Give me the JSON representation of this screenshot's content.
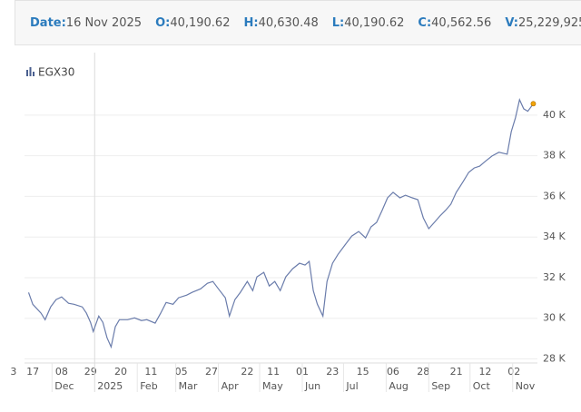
{
  "header": {
    "items": [
      {
        "label": "Date:",
        "value": "16 Nov 2025"
      },
      {
        "label": "O:",
        "value": "40,190.62"
      },
      {
        "label": "H:",
        "value": "40,630.48"
      },
      {
        "label": "L:",
        "value": "40,190.62"
      },
      {
        "label": "C:",
        "value": "40,562.56"
      },
      {
        "label": "V:",
        "value": "25,229,925"
      }
    ]
  },
  "chart_data": {
    "type": "line",
    "title": "EGX30",
    "color": "#6a7cab",
    "last_point_color": "#f0a30a",
    "grid": true,
    "xlim": [
      "2024-11-11",
      "2025-11-19"
    ],
    "ylim": [
      27800,
      41200
    ],
    "yticks": [
      {
        "value": 28000,
        "label": "28 K"
      },
      {
        "value": 30000,
        "label": "30 K"
      },
      {
        "value": 32000,
        "label": "32 K"
      },
      {
        "value": 34000,
        "label": "34 K"
      },
      {
        "value": 36000,
        "label": "36 K"
      },
      {
        "value": 38000,
        "label": "38 K"
      },
      {
        "value": 40000,
        "label": "40 K"
      }
    ],
    "xticks": [
      {
        "value": "2024-11-03",
        "label": "3"
      },
      {
        "value": "2024-11-17",
        "label": "17"
      },
      {
        "value": "2024-12-08",
        "label": "08"
      },
      {
        "value": "2024-12-29",
        "label": "29"
      },
      {
        "value": "2025-01-20",
        "label": "20"
      },
      {
        "value": "2025-02-11",
        "label": "11"
      },
      {
        "value": "2025-03-05",
        "label": "05"
      },
      {
        "value": "2025-03-27",
        "label": "27"
      },
      {
        "value": "2025-04-22",
        "label": "22"
      },
      {
        "value": "2025-05-11",
        "label": "11"
      },
      {
        "value": "2025-06-01",
        "label": "01"
      },
      {
        "value": "2025-06-23",
        "label": "23"
      },
      {
        "value": "2025-07-15",
        "label": "15"
      },
      {
        "value": "2025-08-06",
        "label": "06"
      },
      {
        "value": "2025-08-28",
        "label": "28"
      },
      {
        "value": "2025-09-21",
        "label": "21"
      },
      {
        "value": "2025-10-12",
        "label": "12"
      },
      {
        "value": "2025-11-02",
        "label": "02"
      }
    ],
    "xticks_months": [
      {
        "value": "2024-12-01",
        "label": "Dec"
      },
      {
        "value": "2025-01-01",
        "label": "2025"
      },
      {
        "value": "2025-02-01",
        "label": "Feb"
      },
      {
        "value": "2025-03-01",
        "label": "Mar"
      },
      {
        "value": "2025-04-01",
        "label": "Apr"
      },
      {
        "value": "2025-05-01",
        "label": "May"
      },
      {
        "value": "2025-06-01",
        "label": "Jun"
      },
      {
        "value": "2025-07-01",
        "label": "Jul"
      },
      {
        "value": "2025-08-01",
        "label": "Aug"
      },
      {
        "value": "2025-09-01",
        "label": "Sep"
      },
      {
        "value": "2025-10-01",
        "label": "Oct"
      },
      {
        "value": "2025-11-01",
        "label": "Nov"
      }
    ],
    "x": [
      "2024-11-14",
      "2024-11-17",
      "2024-11-23",
      "2024-11-26",
      "2024-11-30",
      "2024-12-04",
      "2024-12-08",
      "2024-12-13",
      "2024-12-17",
      "2024-12-23",
      "2024-12-26",
      "2024-12-29",
      "2024-12-31",
      "2025-01-04",
      "2025-01-07",
      "2025-01-10",
      "2025-01-13",
      "2025-01-16",
      "2025-01-19",
      "2025-01-25",
      "2025-01-30",
      "2025-02-04",
      "2025-02-08",
      "2025-02-14",
      "2025-02-18",
      "2025-02-22",
      "2025-02-27",
      "2025-03-03",
      "2025-03-09",
      "2025-03-13",
      "2025-03-19",
      "2025-03-24",
      "2025-03-28",
      "2025-04-01",
      "2025-04-06",
      "2025-04-09",
      "2025-04-13",
      "2025-04-17",
      "2025-04-22",
      "2025-04-26",
      "2025-04-29",
      "2025-05-04",
      "2025-05-08",
      "2025-05-12",
      "2025-05-16",
      "2025-05-20",
      "2025-05-25",
      "2025-05-30",
      "2025-06-03",
      "2025-06-06",
      "2025-06-09",
      "2025-06-12",
      "2025-06-16",
      "2025-06-19",
      "2025-06-23",
      "2025-06-27",
      "2025-07-02",
      "2025-07-07",
      "2025-07-12",
      "2025-07-17",
      "2025-07-21",
      "2025-07-25",
      "2025-07-29",
      "2025-08-02",
      "2025-08-06",
      "2025-08-11",
      "2025-08-15",
      "2025-08-20",
      "2025-08-24",
      "2025-08-28",
      "2025-09-01",
      "2025-09-05",
      "2025-09-09",
      "2025-09-13",
      "2025-09-17",
      "2025-09-21",
      "2025-09-26",
      "2025-09-30",
      "2025-10-04",
      "2025-10-08",
      "2025-10-12",
      "2025-10-17",
      "2025-10-22",
      "2025-10-28",
      "2025-10-31",
      "2025-11-03",
      "2025-11-06",
      "2025-11-09",
      "2025-11-12",
      "2025-11-16"
    ],
    "values": [
      31270,
      30690,
      30250,
      29930,
      30560,
      30920,
      31050,
      30740,
      30690,
      30560,
      30250,
      29800,
      29350,
      30110,
      29800,
      29040,
      28590,
      29580,
      29930,
      29930,
      30020,
      29890,
      29930,
      29760,
      30250,
      30780,
      30690,
      31010,
      31140,
      31280,
      31450,
      31720,
      31810,
      31450,
      31010,
      30110,
      30920,
      31280,
      31810,
      31360,
      32040,
      32260,
      31590,
      31810,
      31360,
      32040,
      32440,
      32710,
      32620,
      32800,
      31360,
      30690,
      30110,
      31810,
      32710,
      33150,
      33600,
      34050,
      34270,
      33960,
      34500,
      34720,
      35300,
      35930,
      36200,
      35930,
      36060,
      35930,
      35840,
      34940,
      34410,
      34720,
      35030,
      35300,
      35610,
      36200,
      36730,
      37180,
      37400,
      37490,
      37720,
      37990,
      38170,
      38080,
      39190,
      39870,
      40760,
      40310,
      40190,
      40562.56
    ]
  }
}
